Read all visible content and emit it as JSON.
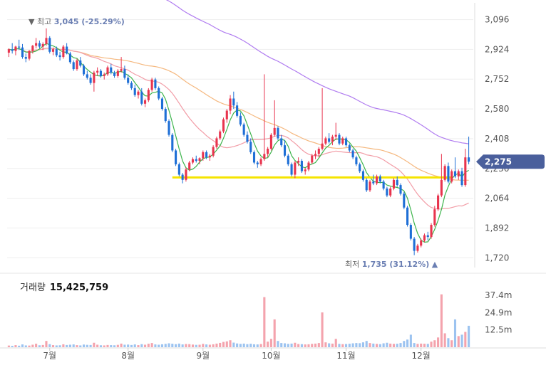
{
  "chart_data": {
    "type": "candlestick",
    "price": {
      "ylim": [
        1680,
        3160
      ],
      "ticks": [
        "3,096",
        "2,924",
        "2,752",
        "2,580",
        "2,408",
        "2,236",
        "2,064",
        "1,892",
        "1,720"
      ],
      "tick_values": [
        3096,
        2924,
        2752,
        2580,
        2408,
        2236,
        2064,
        1892,
        1720
      ],
      "current": {
        "label": "2,275",
        "value": 2275,
        "color": "#4a5f9c"
      },
      "high_label": {
        "prefix": "▼ 최고 ",
        "value_text": "3,045 (-25.29%)",
        "value": 3045,
        "day": 12
      },
      "low_label": {
        "prefix": "최저 ",
        "value_text": "1,735 (31.12%)",
        "suffix": " ▲",
        "value": 1735,
        "day": 128
      },
      "support_line": {
        "value": 2184,
        "color": "#f5e400",
        "from_day": 48,
        "to_day": 130
      },
      "colors": {
        "up": "#e8344e",
        "down": "#1e6fd6",
        "ma5": "#3cb44b",
        "ma20": "#f29ca6",
        "ma60": "#f5b87f",
        "ma120": "#b07cf0"
      }
    },
    "months": [
      {
        "label": "7월",
        "day": 12
      },
      {
        "label": "8월",
        "day": 35
      },
      {
        "label": "9월",
        "day": 57
      },
      {
        "label": "10월",
        "day": 77
      },
      {
        "label": "11월",
        "day": 99
      },
      {
        "label": "12월",
        "day": 121
      }
    ],
    "volume": {
      "title": "거래량",
      "value_text": "15,425,759",
      "ylim": [
        0,
        45
      ],
      "ticks": [
        "37.4m",
        "24.9m",
        "12.5m"
      ],
      "tick_values": [
        37.4,
        24.9,
        12.5
      ]
    },
    "candles": [
      [
        2905,
        2930,
        2880,
        2925
      ],
      [
        2925,
        2960,
        2900,
        2915
      ],
      [
        2915,
        2945,
        2890,
        2940
      ],
      [
        2940,
        2980,
        2920,
        2935
      ],
      [
        2935,
        2955,
        2870,
        2880
      ],
      [
        2880,
        2900,
        2850,
        2870
      ],
      [
        2870,
        2920,
        2860,
        2915
      ],
      [
        2915,
        2950,
        2900,
        2945
      ],
      [
        2945,
        2990,
        2930,
        2960
      ],
      [
        2960,
        2975,
        2930,
        2940
      ],
      [
        2940,
        2965,
        2920,
        2955
      ],
      [
        2955,
        3045,
        2945,
        2990
      ],
      [
        2990,
        3000,
        2900,
        2910
      ],
      [
        2910,
        2935,
        2890,
        2925
      ],
      [
        2925,
        2940,
        2880,
        2890
      ],
      [
        2890,
        2910,
        2860,
        2880
      ],
      [
        2880,
        2950,
        2870,
        2940
      ],
      [
        2940,
        2960,
        2895,
        2900
      ],
      [
        2900,
        2910,
        2840,
        2850
      ],
      [
        2850,
        2860,
        2800,
        2810
      ],
      [
        2810,
        2870,
        2800,
        2860
      ],
      [
        2860,
        2880,
        2820,
        2830
      ],
      [
        2830,
        2840,
        2770,
        2780
      ],
      [
        2780,
        2800,
        2750,
        2760
      ],
      [
        2760,
        2780,
        2720,
        2730
      ],
      [
        2730,
        2800,
        2680,
        2790
      ],
      [
        2790,
        2820,
        2770,
        2800
      ],
      [
        2800,
        2810,
        2760,
        2770
      ],
      [
        2770,
        2790,
        2750,
        2780
      ],
      [
        2780,
        2830,
        2770,
        2820
      ],
      [
        2820,
        2840,
        2780,
        2790
      ],
      [
        2790,
        2800,
        2760,
        2770
      ],
      [
        2770,
        2810,
        2760,
        2800
      ],
      [
        2800,
        2880,
        2790,
        2810
      ],
      [
        2810,
        2830,
        2750,
        2760
      ],
      [
        2760,
        2780,
        2720,
        2730
      ],
      [
        2730,
        2740,
        2690,
        2700
      ],
      [
        2700,
        2720,
        2650,
        2660
      ],
      [
        2660,
        2690,
        2640,
        2680
      ],
      [
        2680,
        2700,
        2600,
        2610
      ],
      [
        2610,
        2640,
        2590,
        2630
      ],
      [
        2630,
        2700,
        2620,
        2690
      ],
      [
        2690,
        2760,
        2680,
        2750
      ],
      [
        2750,
        2760,
        2690,
        2700
      ],
      [
        2700,
        2710,
        2630,
        2640
      ],
      [
        2640,
        2650,
        2570,
        2580
      ],
      [
        2580,
        2590,
        2500,
        2510
      ],
      [
        2510,
        2520,
        2420,
        2430
      ],
      [
        2430,
        2440,
        2330,
        2340
      ],
      [
        2340,
        2350,
        2250,
        2260
      ],
      [
        2260,
        2270,
        2190,
        2200
      ],
      [
        2200,
        2210,
        2150,
        2170
      ],
      [
        2170,
        2240,
        2160,
        2230
      ],
      [
        2230,
        2280,
        2220,
        2270
      ],
      [
        2270,
        2300,
        2260,
        2290
      ],
      [
        2290,
        2310,
        2270,
        2280
      ],
      [
        2280,
        2300,
        2260,
        2295
      ],
      [
        2295,
        2340,
        2280,
        2330
      ],
      [
        2330,
        2340,
        2290,
        2300
      ],
      [
        2300,
        2320,
        2280,
        2310
      ],
      [
        2310,
        2370,
        2300,
        2360
      ],
      [
        2360,
        2420,
        2350,
        2410
      ],
      [
        2410,
        2460,
        2400,
        2450
      ],
      [
        2450,
        2530,
        2440,
        2520
      ],
      [
        2520,
        2580,
        2500,
        2570
      ],
      [
        2570,
        2660,
        2550,
        2640
      ],
      [
        2640,
        2680,
        2580,
        2600
      ],
      [
        2600,
        2620,
        2530,
        2540
      ],
      [
        2540,
        2560,
        2480,
        2490
      ],
      [
        2490,
        2500,
        2420,
        2430
      ],
      [
        2430,
        2450,
        2380,
        2390
      ],
      [
        2390,
        2410,
        2320,
        2330
      ],
      [
        2330,
        2340,
        2260,
        2270
      ],
      [
        2270,
        2280,
        2240,
        2260
      ],
      [
        2260,
        2300,
        2250,
        2290
      ],
      [
        2290,
        2780,
        2280,
        2320
      ],
      [
        2320,
        2360,
        2300,
        2350
      ],
      [
        2350,
        2440,
        2340,
        2430
      ],
      [
        2430,
        2630,
        2420,
        2470
      ],
      [
        2470,
        2480,
        2400,
        2410
      ],
      [
        2410,
        2430,
        2360,
        2370
      ],
      [
        2370,
        2400,
        2300,
        2310
      ],
      [
        2310,
        2320,
        2250,
        2260
      ],
      [
        2260,
        2270,
        2190,
        2200
      ],
      [
        2200,
        2280,
        2180,
        2270
      ],
      [
        2270,
        2300,
        2250,
        2280
      ],
      [
        2280,
        2290,
        2210,
        2220
      ],
      [
        2220,
        2240,
        2200,
        2230
      ],
      [
        2230,
        2280,
        2220,
        2270
      ],
      [
        2270,
        2320,
        2260,
        2310
      ],
      [
        2310,
        2340,
        2290,
        2320
      ],
      [
        2320,
        2360,
        2300,
        2350
      ],
      [
        2350,
        2700,
        2340,
        2380
      ],
      [
        2380,
        2420,
        2370,
        2410
      ],
      [
        2410,
        2440,
        2380,
        2390
      ],
      [
        2390,
        2430,
        2370,
        2420
      ],
      [
        2420,
        2500,
        2400,
        2430
      ],
      [
        2430,
        2440,
        2370,
        2380
      ],
      [
        2380,
        2420,
        2370,
        2410
      ],
      [
        2410,
        2420,
        2360,
        2370
      ],
      [
        2370,
        2380,
        2330,
        2340
      ],
      [
        2340,
        2350,
        2290,
        2300
      ],
      [
        2300,
        2310,
        2250,
        2260
      ],
      [
        2260,
        2270,
        2210,
        2220
      ],
      [
        2220,
        2230,
        2160,
        2170
      ],
      [
        2170,
        2180,
        2100,
        2110
      ],
      [
        2110,
        2170,
        2100,
        2160
      ],
      [
        2160,
        2200,
        2140,
        2150
      ],
      [
        2150,
        2200,
        2140,
        2190
      ],
      [
        2190,
        2200,
        2150,
        2160
      ],
      [
        2160,
        2170,
        2110,
        2120
      ],
      [
        2120,
        2130,
        2070,
        2080
      ],
      [
        2080,
        2130,
        2070,
        2120
      ],
      [
        2120,
        2180,
        2110,
        2170
      ],
      [
        2170,
        2190,
        2130,
        2140
      ],
      [
        2140,
        2150,
        2080,
        2090
      ],
      [
        2090,
        2100,
        2000,
        2010
      ],
      [
        2010,
        2020,
        1900,
        1910
      ],
      [
        1910,
        1920,
        1820,
        1830
      ],
      [
        1830,
        1840,
        1735,
        1760
      ],
      [
        1760,
        1800,
        1750,
        1790
      ],
      [
        1790,
        1830,
        1780,
        1820
      ],
      [
        1820,
        1860,
        1810,
        1850
      ],
      [
        1850,
        1870,
        1820,
        1840
      ],
      [
        1840,
        1920,
        1830,
        1910
      ],
      [
        1910,
        2020,
        1900,
        2000
      ],
      [
        2000,
        2090,
        1990,
        2080
      ],
      [
        2080,
        2320,
        2070,
        2170
      ],
      [
        2170,
        2260,
        2160,
        2250
      ],
      [
        2250,
        2270,
        2150,
        2160
      ],
      [
        2160,
        2230,
        2150,
        2220
      ],
      [
        2220,
        2300,
        2180,
        2190
      ],
      [
        2190,
        2230,
        2170,
        2220
      ],
      [
        2220,
        2240,
        2130,
        2140
      ],
      [
        2140,
        2350,
        2130,
        2300
      ],
      [
        2300,
        2420,
        2260,
        2275
      ]
    ],
    "volumes": [
      1.2,
      1.0,
      1.5,
      1.1,
      2.0,
      1.3,
      1.2,
      1.8,
      2.5,
      1.4,
      1.6,
      4.5,
      2.2,
      1.5,
      1.3,
      1.4,
      2.1,
      1.6,
      1.8,
      2.0,
      1.5,
      1.3,
      1.9,
      1.7,
      1.6,
      3.2,
      1.8,
      1.4,
      1.3,
      1.6,
      1.5,
      1.4,
      1.7,
      2.6,
      1.8,
      1.9,
      1.6,
      2.0,
      1.5,
      2.2,
      1.8,
      2.5,
      3.0,
      2.0,
      1.8,
      2.1,
      2.4,
      2.8,
      2.5,
      2.2,
      2.6,
      2.0,
      2.3,
      2.2,
      1.9,
      1.7,
      1.8,
      2.4,
      2.0,
      1.8,
      2.1,
      2.6,
      3.1,
      3.8,
      4.2,
      5.0,
      3.3,
      2.7,
      2.4,
      2.6,
      2.2,
      2.5,
      2.1,
      2.0,
      2.3,
      36.0,
      4.0,
      6.0,
      20.0,
      4.5,
      3.0,
      2.8,
      2.4,
      2.6,
      3.2,
      2.3,
      2.2,
      2.0,
      2.1,
      2.4,
      2.6,
      3.0,
      25.0,
      3.5,
      2.8,
      2.6,
      6.0,
      2.4,
      2.2,
      2.3,
      2.5,
      2.8,
      3.0,
      2.9,
      3.5,
      4.5,
      3.0,
      2.6,
      2.4,
      2.2,
      2.8,
      3.2,
      2.6,
      2.4,
      2.5,
      3.0,
      4.5,
      5.5,
      9.0,
      3.0,
      2.4,
      2.6,
      2.5,
      2.4,
      4.0,
      5.0,
      7.0,
      38.0,
      10.0,
      6.5,
      5.0,
      20.0,
      8.0,
      9.0,
      11.0,
      15.4
    ]
  }
}
